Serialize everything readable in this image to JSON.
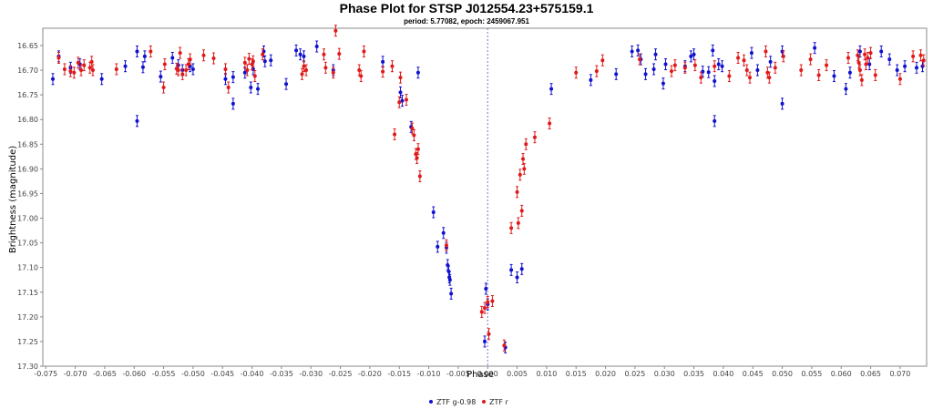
{
  "chart_data": {
    "type": "scatter",
    "title": "Phase Plot for STSP J012554.23+575159.1",
    "subtitle": "period: 5.77082, epoch: 2459067.951",
    "xlabel": "Phase",
    "ylabel": "Brightness (magnitude)",
    "xlim": [
      -0.0755,
      0.0745
    ],
    "ylim": [
      16.615,
      17.3
    ],
    "y_inverted": true,
    "x_ticks": [
      "-0.075",
      "-0.070",
      "-0.065",
      "-0.060",
      "-0.055",
      "-0.050",
      "-0.045",
      "-0.040",
      "-0.035",
      "-0.030",
      "-0.025",
      "-0.020",
      "-0.015",
      "-0.010",
      "-0.005",
      "0.000",
      "0.005",
      "0.010",
      "0.015",
      "0.020",
      "0.025",
      "0.030",
      "0.035",
      "0.040",
      "0.045",
      "0.050",
      "0.055",
      "0.060",
      "0.065",
      "0.070"
    ],
    "y_ticks": [
      "16.65",
      "16.70",
      "16.75",
      "16.80",
      "16.85",
      "16.90",
      "16.95",
      "17.00",
      "17.05",
      "17.10",
      "17.15",
      "17.20",
      "17.25",
      "17.30"
    ],
    "vertical_reference_line": 0.0,
    "grid": false,
    "legend_position": "bottom",
    "colors": {
      "ztf_g": "#1010d0",
      "ztf_r": "#e01818",
      "refline": "#7777cc",
      "axis": "#888888"
    },
    "series": [
      {
        "name": "ZTF g-0.98",
        "color": "#1010d0",
        "points": [
          [
            -0.0738,
            16.718
          ],
          [
            -0.0728,
            16.672
          ],
          [
            -0.0708,
            16.695
          ],
          [
            -0.0692,
            16.688
          ],
          [
            -0.0655,
            16.718
          ],
          [
            -0.0615,
            16.692
          ],
          [
            -0.0595,
            16.662
          ],
          [
            -0.0595,
            16.803
          ],
          [
            -0.0585,
            16.694
          ],
          [
            -0.0582,
            16.672
          ],
          [
            -0.0555,
            16.713
          ],
          [
            -0.0535,
            16.675
          ],
          [
            -0.0525,
            16.69
          ],
          [
            -0.0518,
            16.7
          ],
          [
            -0.0505,
            16.692
          ],
          [
            -0.05,
            16.698
          ],
          [
            -0.0445,
            16.718
          ],
          [
            -0.0432,
            16.714
          ],
          [
            -0.0432,
            16.768
          ],
          [
            -0.0412,
            16.705
          ],
          [
            -0.0402,
            16.735
          ],
          [
            -0.0398,
            16.698
          ],
          [
            -0.039,
            16.738
          ],
          [
            -0.038,
            16.662
          ],
          [
            -0.0378,
            16.682
          ],
          [
            -0.0368,
            16.68
          ],
          [
            -0.0342,
            16.728
          ],
          [
            -0.0325,
            16.66
          ],
          [
            -0.0318,
            16.668
          ],
          [
            -0.0312,
            16.672
          ],
          [
            -0.029,
            16.652
          ],
          [
            -0.0262,
            16.7
          ],
          [
            -0.0178,
            16.683
          ],
          [
            -0.0148,
            16.745
          ],
          [
            -0.0145,
            16.762
          ],
          [
            -0.013,
            16.815
          ],
          [
            -0.0118,
            16.705
          ],
          [
            -0.0092,
            16.988
          ],
          [
            -0.0085,
            17.058
          ],
          [
            -0.0075,
            17.03
          ],
          [
            -0.007,
            17.06
          ],
          [
            -0.0068,
            17.095
          ],
          [
            -0.0066,
            17.108
          ],
          [
            -0.0065,
            17.12
          ],
          [
            -0.0064,
            17.125
          ],
          [
            -0.0062,
            17.153
          ],
          [
            -0.0005,
            17.25
          ],
          [
            -0.0003,
            17.143
          ],
          [
            0.0,
            17.175
          ],
          [
            0.003,
            17.262
          ],
          [
            0.004,
            17.105
          ],
          [
            0.005,
            17.12
          ],
          [
            0.0058,
            17.103
          ],
          [
            0.0108,
            16.738
          ],
          [
            0.0175,
            16.72
          ],
          [
            0.0218,
            16.708
          ],
          [
            0.0245,
            16.662
          ],
          [
            0.0255,
            16.66
          ],
          [
            0.026,
            16.678
          ],
          [
            0.0268,
            16.708
          ],
          [
            0.0282,
            16.698
          ],
          [
            0.0285,
            16.668
          ],
          [
            0.0298,
            16.727
          ],
          [
            0.0302,
            16.688
          ],
          [
            0.0335,
            16.692
          ],
          [
            0.0345,
            16.672
          ],
          [
            0.035,
            16.668
          ],
          [
            0.0365,
            16.703
          ],
          [
            0.0375,
            16.704
          ],
          [
            0.0382,
            16.66
          ],
          [
            0.0385,
            16.722
          ],
          [
            0.0385,
            16.803
          ],
          [
            0.0392,
            16.688
          ],
          [
            0.0398,
            16.692
          ],
          [
            0.0448,
            16.665
          ],
          [
            0.0458,
            16.7
          ],
          [
            0.048,
            16.683
          ],
          [
            0.05,
            16.662
          ],
          [
            0.05,
            16.768
          ],
          [
            0.0555,
            16.655
          ],
          [
            0.0588,
            16.712
          ],
          [
            0.0608,
            16.738
          ],
          [
            0.0615,
            16.705
          ],
          [
            0.0632,
            16.662
          ],
          [
            0.0648,
            16.688
          ],
          [
            0.0668,
            16.662
          ],
          [
            0.0682,
            16.678
          ],
          [
            0.0695,
            16.7
          ],
          [
            0.0708,
            16.692
          ],
          [
            0.0728,
            16.695
          ],
          [
            0.0738,
            16.692
          ]
        ]
      },
      {
        "name": "ZTF r",
        "color": "#e01818",
        "points": [
          [
            -0.0728,
            16.675
          ],
          [
            -0.0718,
            16.698
          ],
          [
            -0.0708,
            16.702
          ],
          [
            -0.0702,
            16.705
          ],
          [
            -0.0695,
            16.685
          ],
          [
            -0.069,
            16.7
          ],
          [
            -0.0685,
            16.69
          ],
          [
            -0.0675,
            16.695
          ],
          [
            -0.0672,
            16.683
          ],
          [
            -0.067,
            16.7
          ],
          [
            -0.063,
            16.698
          ],
          [
            -0.0572,
            16.662
          ],
          [
            -0.055,
            16.735
          ],
          [
            -0.0548,
            16.688
          ],
          [
            -0.0528,
            16.697
          ],
          [
            -0.0525,
            16.7
          ],
          [
            -0.0522,
            16.665
          ],
          [
            -0.0518,
            16.708
          ],
          [
            -0.0512,
            16.7
          ],
          [
            -0.0508,
            16.688
          ],
          [
            -0.0505,
            16.678
          ],
          [
            -0.0482,
            16.67
          ],
          [
            -0.0465,
            16.676
          ],
          [
            -0.0445,
            16.698
          ],
          [
            -0.044,
            16.735
          ],
          [
            -0.0412,
            16.685
          ],
          [
            -0.0408,
            16.7
          ],
          [
            -0.0405,
            16.677
          ],
          [
            -0.04,
            16.688
          ],
          [
            -0.0398,
            16.682
          ],
          [
            -0.0395,
            16.712
          ],
          [
            -0.0382,
            16.668
          ],
          [
            -0.0315,
            16.708
          ],
          [
            -0.0312,
            16.692
          ],
          [
            -0.0308,
            16.7
          ],
          [
            -0.0278,
            16.668
          ],
          [
            -0.0275,
            16.695
          ],
          [
            -0.0262,
            16.705
          ],
          [
            -0.0258,
            16.62
          ],
          [
            -0.0252,
            16.667
          ],
          [
            -0.0218,
            16.7
          ],
          [
            -0.0215,
            16.712
          ],
          [
            -0.021,
            16.662
          ],
          [
            -0.0178,
            16.703
          ],
          [
            -0.0162,
            16.692
          ],
          [
            -0.0158,
            16.83
          ],
          [
            -0.015,
            16.765
          ],
          [
            -0.0148,
            16.715
          ],
          [
            -0.0138,
            16.76
          ],
          [
            -0.0128,
            16.818
          ],
          [
            -0.0125,
            16.832
          ],
          [
            -0.0122,
            16.87
          ],
          [
            -0.012,
            16.878
          ],
          [
            -0.0118,
            16.86
          ],
          [
            -0.0115,
            16.915
          ],
          [
            -0.007,
            17.055
          ],
          [
            -0.001,
            17.19
          ],
          [
            -0.0005,
            17.182
          ],
          [
            0.0,
            17.17
          ],
          [
            0.0008,
            17.168
          ],
          [
            0.0002,
            17.235
          ],
          [
            0.0028,
            17.258
          ],
          [
            0.005,
            16.947
          ],
          [
            0.0055,
            16.912
          ],
          [
            0.0058,
            16.985
          ],
          [
            0.006,
            16.88
          ],
          [
            0.0062,
            16.9
          ],
          [
            0.0065,
            16.85
          ],
          [
            0.008,
            16.836
          ],
          [
            0.0052,
            17.01
          ],
          [
            0.004,
            17.02
          ],
          [
            0.0105,
            16.808
          ],
          [
            0.015,
            16.705
          ],
          [
            0.0185,
            16.702
          ],
          [
            0.0195,
            16.68
          ],
          [
            0.0258,
            16.678
          ],
          [
            0.0312,
            16.702
          ],
          [
            0.0318,
            16.69
          ],
          [
            0.0335,
            16.695
          ],
          [
            0.0352,
            16.69
          ],
          [
            0.0362,
            16.715
          ],
          [
            0.0385,
            16.692
          ],
          [
            0.041,
            16.712
          ],
          [
            0.0425,
            16.675
          ],
          [
            0.0435,
            16.68
          ],
          [
            0.044,
            16.7
          ],
          [
            0.0445,
            16.715
          ],
          [
            0.0472,
            16.662
          ],
          [
            0.0475,
            16.705
          ],
          [
            0.0478,
            16.715
          ],
          [
            0.0488,
            16.695
          ],
          [
            0.0502,
            16.672
          ],
          [
            0.0532,
            16.7
          ],
          [
            0.0548,
            16.678
          ],
          [
            0.0562,
            16.71
          ],
          [
            0.0575,
            16.69
          ],
          [
            0.0612,
            16.675
          ],
          [
            0.0628,
            16.67
          ],
          [
            0.063,
            16.685
          ],
          [
            0.0632,
            16.7
          ],
          [
            0.0635,
            16.72
          ],
          [
            0.064,
            16.668
          ],
          [
            0.0642,
            16.688
          ],
          [
            0.0645,
            16.675
          ],
          [
            0.065,
            16.665
          ],
          [
            0.0658,
            16.71
          ],
          [
            0.07,
            16.718
          ],
          [
            0.0722,
            16.672
          ],
          [
            0.0735,
            16.67
          ],
          [
            0.074,
            16.68
          ]
        ]
      }
    ]
  }
}
